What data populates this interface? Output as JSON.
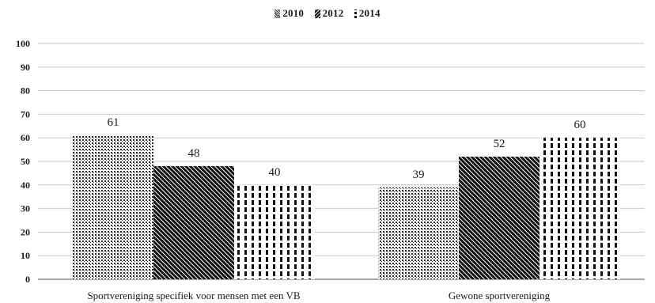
{
  "chart_data": {
    "type": "bar",
    "title": "",
    "xlabel": "",
    "ylabel": "",
    "categories": [
      "Sportvereniging specifiek voor mensen met een VB",
      "Gewone sportvereniging"
    ],
    "series": [
      {
        "name": "2010",
        "values": [
          61,
          39
        ],
        "pattern": "dots"
      },
      {
        "name": "2012",
        "values": [
          48,
          52
        ],
        "pattern": "diagonal"
      },
      {
        "name": "2014",
        "values": [
          40,
          60
        ],
        "pattern": "dashes"
      }
    ],
    "ylim": [
      0,
      100
    ],
    "yticks": [
      0,
      10,
      20,
      30,
      40,
      50,
      60,
      70,
      80,
      90,
      100
    ],
    "grid": true,
    "legend_position": "top-center",
    "data_labels": true
  }
}
